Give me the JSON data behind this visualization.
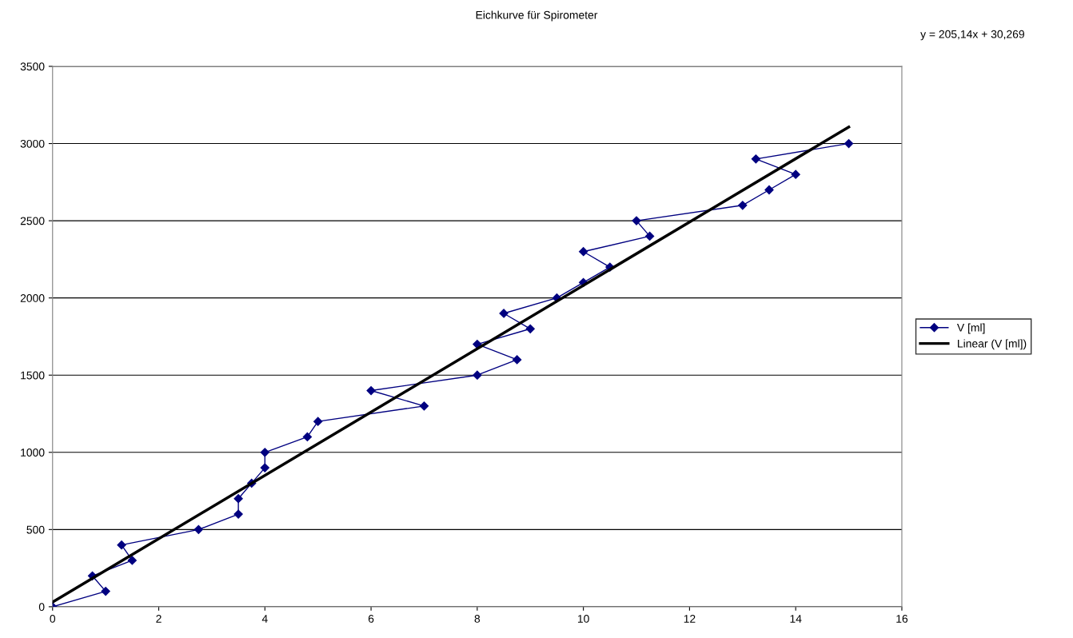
{
  "chart_data": {
    "type": "line",
    "title": "Eichkurve für Spirometer",
    "annotations": [
      "y = 205,14x + 30,269"
    ],
    "series": [
      {
        "name": "V [ml]",
        "color": "#000080",
        "marker": "diamond",
        "x": [
          0,
          1,
          0.75,
          1.5,
          1.3,
          2.75,
          3.5,
          3.5,
          3.75,
          4,
          4,
          4.8,
          5,
          7,
          6,
          8,
          8.75,
          8,
          9,
          8.5,
          9.5,
          10,
          10.5,
          10,
          11.25,
          11,
          13,
          13.5,
          14,
          13.25,
          15
        ],
        "values": [
          0,
          100,
          200,
          300,
          400,
          500,
          600,
          700,
          800,
          900,
          1000,
          1100,
          1200,
          1300,
          1400,
          1500,
          1600,
          1700,
          1800,
          1900,
          2000,
          2100,
          2200,
          2300,
          2400,
          2500,
          2600,
          2700,
          2800,
          2900,
          3000
        ]
      },
      {
        "name": "Linear (V [ml])",
        "color": "#000000",
        "marker": "none",
        "x": [
          0,
          15
        ],
        "values": [
          30,
          3107
        ]
      }
    ],
    "xlim": [
      0,
      16
    ],
    "xticks": [
      0,
      2,
      4,
      6,
      8,
      10,
      12,
      14,
      16
    ],
    "ylim": [
      0,
      3500
    ],
    "yticks": [
      0,
      500,
      1000,
      1500,
      2000,
      2500,
      3000,
      3500
    ],
    "grid": "y",
    "legend": "right",
    "line_style": "solid"
  }
}
